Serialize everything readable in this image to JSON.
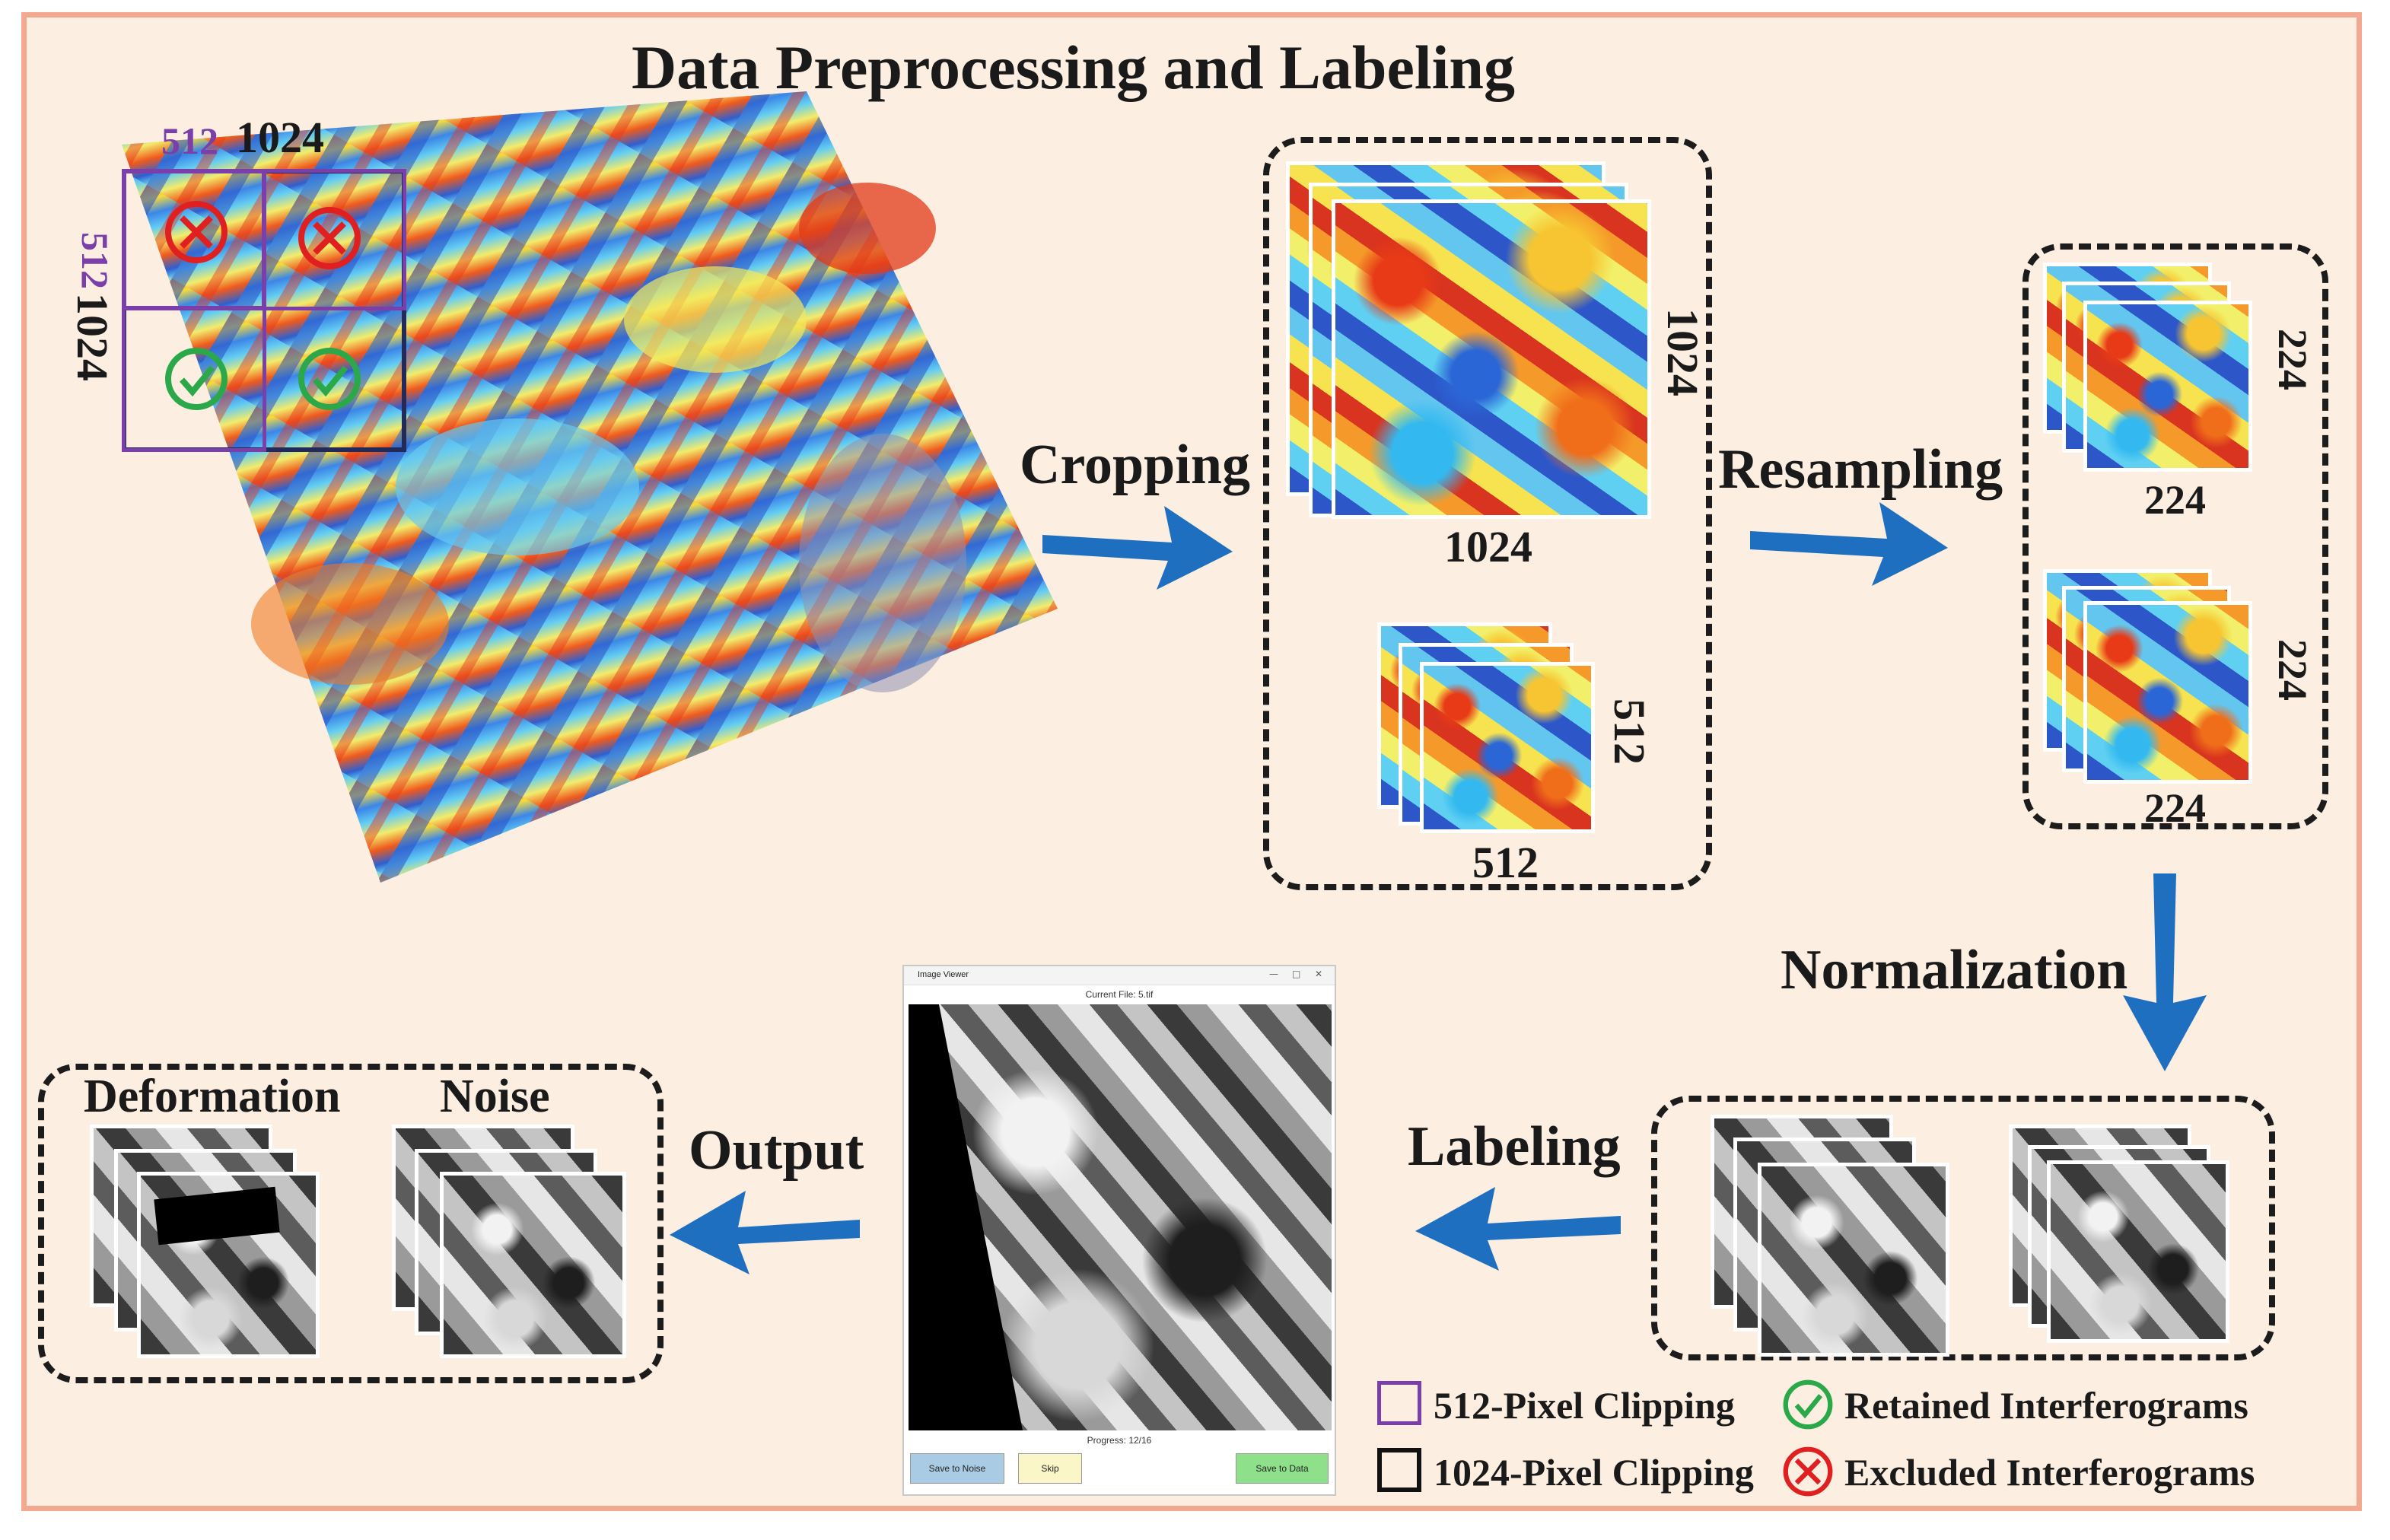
{
  "title": "Data Preprocessing and Labeling",
  "source_grid": {
    "label_512_top": "512",
    "label_1024_top": "1024",
    "label_512_left": "512",
    "label_1024_left": "1024"
  },
  "steps": {
    "cropping": "Cropping",
    "resampling": "Resampling",
    "normalization": "Normalization",
    "labeling": "Labeling",
    "output": "Output"
  },
  "crop_group": {
    "large_side": "1024",
    "large_bottom": "1024",
    "small_side": "512",
    "small_bottom": "512"
  },
  "resample_group": {
    "top_side": "224",
    "top_bottom": "224",
    "bottom_side": "224",
    "bottom_bottom": "224"
  },
  "output_group": {
    "deformation": "Deformation",
    "noise": "Noise"
  },
  "viewer": {
    "window_title": "Image Viewer",
    "current_file": "Current File: 5.tif",
    "progress": "Progress: 12/16",
    "btn_noise": "Save to Noise",
    "btn_skip": "Skip",
    "btn_data": "Save to Data"
  },
  "legend": {
    "clip_512": "512-Pixel Clipping",
    "clip_1024": "1024-Pixel Clipping",
    "retained": "Retained Interferograms",
    "excluded": "Excluded Interferograms"
  },
  "colors": {
    "arrow": "#1f6fc0",
    "purple_box": "#7a3fa8",
    "navy_box": "#222a5a",
    "retained": "#2aa84a",
    "excluded": "#e02020",
    "frame_border": "#f2a98f",
    "background": "#fcefe2"
  }
}
